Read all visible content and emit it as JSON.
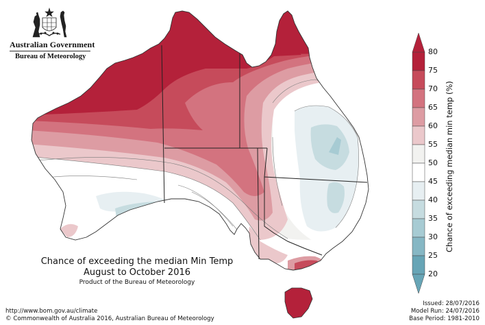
{
  "agency": {
    "government": "Australian Government",
    "bureau": "Bureau of Meteorology",
    "crest": "Commonwealth Coat of Arms"
  },
  "map": {
    "title_line1": "Chance of exceeding the median Min Temp",
    "title_line2": "August to October 2016",
    "product": "Product of the Bureau of Meteorology"
  },
  "legend": {
    "title": "Chance of exceeding median min temp (%)",
    "ticks": [
      "80",
      "75",
      "70",
      "65",
      "60",
      "55",
      "50",
      "45",
      "40",
      "35",
      "30",
      "25",
      "20"
    ],
    "colors": {
      "75-80": "#b4213a",
      "70-75": "#c64b5b",
      "65-70": "#d3737f",
      "60-65": "#dd9ca3",
      "55-60": "#ebc8cb",
      "50-55": "#f2f2f0",
      "45-50": "#ffffff",
      "40-45": "#e7eff2",
      "35-40": "#c6dce0",
      "30-35": "#a7cbd3",
      "25-30": "#86b7c4",
      "20-25": "#67a5b6"
    }
  },
  "footer": {
    "url": "http://www.bom.gov.au/climate",
    "copyright": "© Commonwealth of Australia 2016, Australian Bureau of Meteorology"
  },
  "meta": {
    "issued": "Issued: 28/07/2016",
    "model_run": "Model Run: 24/07/2016",
    "base_period": "Base Period: 1981-2010"
  }
}
